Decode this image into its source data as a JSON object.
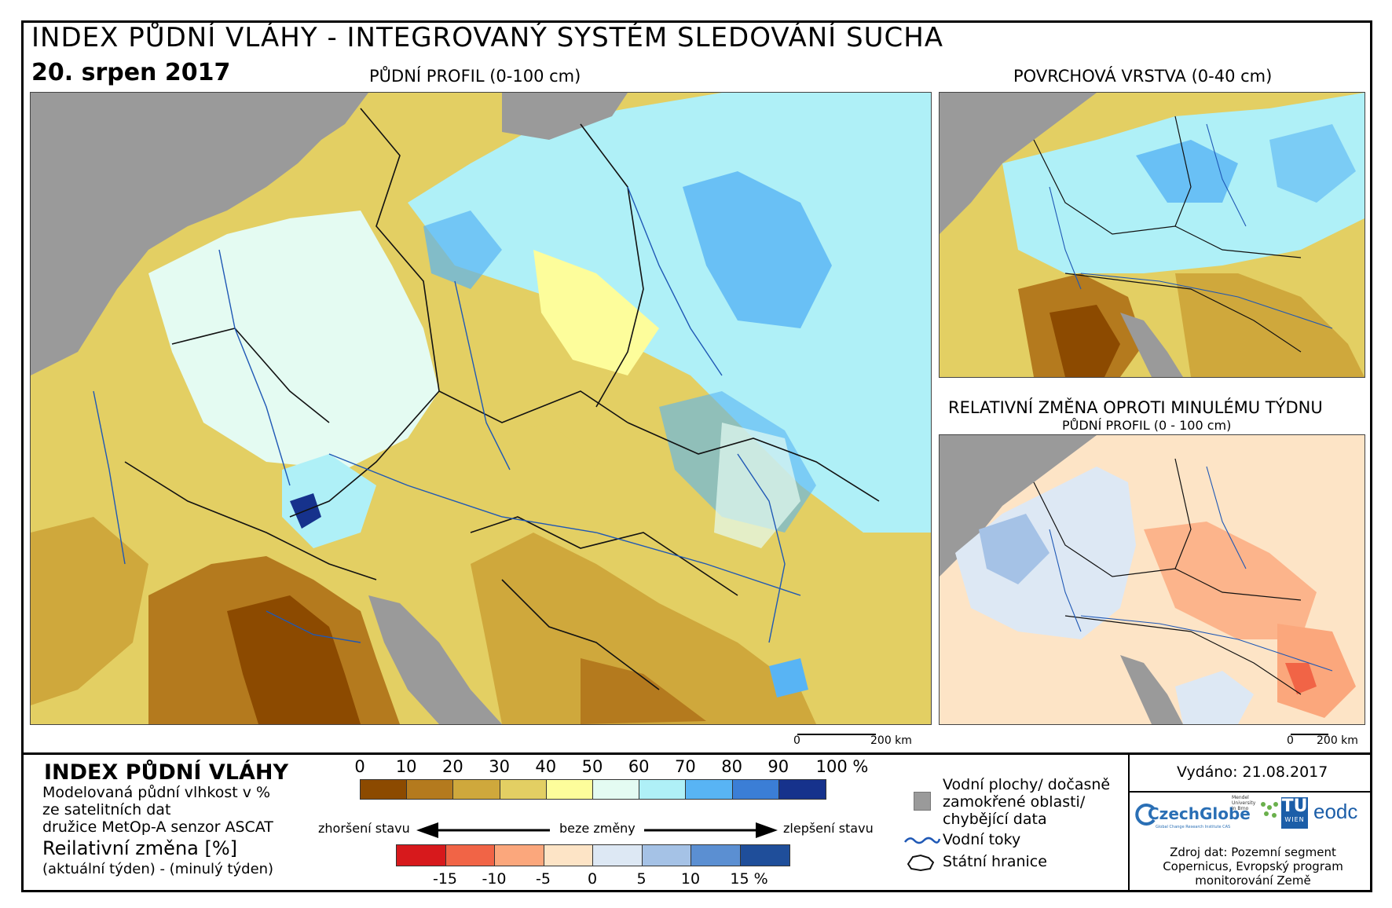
{
  "header": {
    "title": "INDEX PŮDNÍ VLÁHY - INTEGROVANÝ SYSTÉM SLEDOVÁNÍ SUCHA",
    "date": "20. srpen 2017"
  },
  "maps": {
    "main_caption": "PŮDNÍ PROFIL (0-100 cm)",
    "surface_caption": "POVRCHOVÁ VRSTVA (0-40 cm)",
    "change_caption": "RELATIVNÍ ZMĚNA OPROTI MINULÉMU TÝDNU",
    "change_subcaption": "PŮDNÍ PROFIL (0 - 100 cm)",
    "scale_main": {
      "zero": "0",
      "end": "200 km"
    },
    "scale_change": {
      "zero": "0",
      "end": "200 km"
    }
  },
  "legend": {
    "title": "INDEX PŮDNÍ VLÁHY",
    "desc_lines": [
      "Modelovaná půdní vlhkost v %",
      "ze satelitních dat",
      "družice MetOp-A senzor ASCAT"
    ],
    "change_title": "Reilativní změna [%]",
    "change_desc": "(aktuální týden) - (minulý týden)",
    "index_ticks": [
      "0",
      "10",
      "20",
      "30",
      "40",
      "50",
      "60",
      "70",
      "80",
      "90",
      "100 %"
    ],
    "index_colors": [
      "#8c4a00",
      "#b47a1e",
      "#cfa83c",
      "#e3cf63",
      "#fdfd9b",
      "#e4fbf2",
      "#aff0f7",
      "#58b4f4",
      "#3b7ed6",
      "#16328c"
    ],
    "worse_label": "zhoršení stavu",
    "nochange_label": "beze změny",
    "better_label": "zlepšení stavu",
    "change_ticks": [
      "-15",
      "-10",
      "-5",
      "0",
      "5",
      "10",
      "15 %"
    ],
    "change_colors": [
      "#d7191c",
      "#f16446",
      "#fba77c",
      "#fde4c6",
      "#dde8f4",
      "#a5c2e6",
      "#5b8fd2",
      "#1f4e9a"
    ],
    "water_label_lines": [
      "Vodní plochy/ dočasně",
      "zamokřené oblasti/",
      "chybějící data"
    ],
    "rivers_label": "Vodní toky",
    "borders_label": "Státní hranice"
  },
  "info": {
    "issued": "Vydáno: 21.08.2017",
    "logos": {
      "czechglobe": "CzechGlobe",
      "czechglobe_sub": "Global Change Research Institute CAS",
      "mendel": "Mendel University in Brno",
      "tu": "TU",
      "tu_sub": "WIEN",
      "eodc": "eodc"
    },
    "source_lines": [
      "Zdroj dat: Pozemní segment",
      "Copernicus, Evropský program",
      "monitorování Země"
    ]
  },
  "colors": {
    "no_data": "#9a9a9a",
    "river": "#1f58b5",
    "border": "#111111"
  }
}
